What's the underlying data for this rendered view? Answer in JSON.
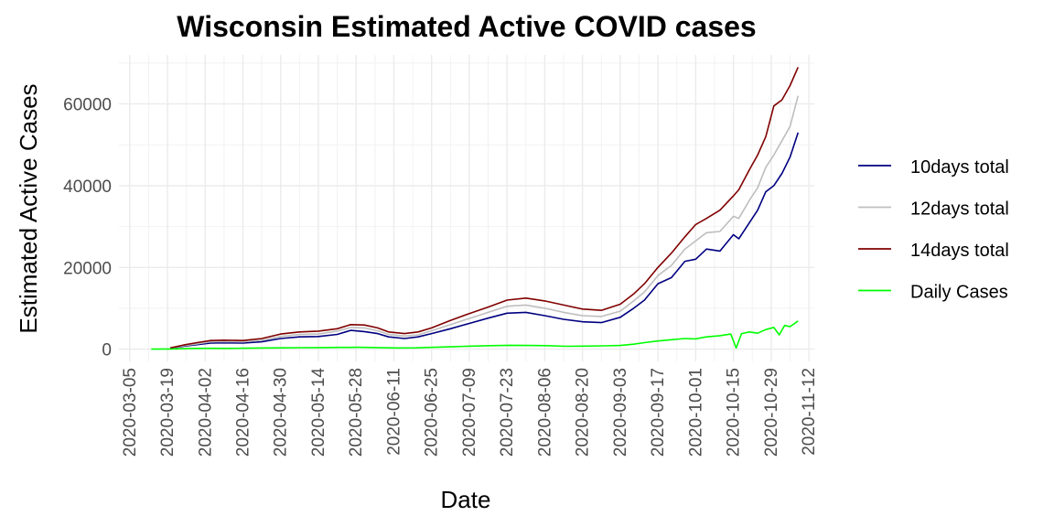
{
  "chart_data": {
    "type": "line",
    "title": "Wisconsin Estimated Active COVID cases",
    "xlabel": "Date",
    "ylabel": "Estimated Active Cases",
    "x_type": "date",
    "xlim": [
      "2020-03-01",
      "2020-11-14"
    ],
    "ylim": [
      -3000,
      72000
    ],
    "x_ticks": [
      "2020-03-05",
      "2020-03-19",
      "2020-04-02",
      "2020-04-16",
      "2020-04-30",
      "2020-05-14",
      "2020-05-28",
      "2020-06-11",
      "2020-06-25",
      "2020-07-09",
      "2020-07-23",
      "2020-08-06",
      "2020-08-20",
      "2020-09-03",
      "2020-09-17",
      "2020-10-01",
      "2020-10-15",
      "2020-10-29",
      "2020-11-12"
    ],
    "y_ticks": [
      0,
      20000,
      40000,
      60000
    ],
    "y_tick_labels": [
      "0",
      "20000",
      "40000",
      "60000"
    ],
    "grid": true,
    "legend_position": "right",
    "series": [
      {
        "name": "10days total",
        "color": "#000080",
        "points": [
          [
            "2020-03-20",
            200
          ],
          [
            "2020-03-25",
            700
          ],
          [
            "2020-03-30",
            1100
          ],
          [
            "2020-04-04",
            1500
          ],
          [
            "2020-04-09",
            1550
          ],
          [
            "2020-04-16",
            1500
          ],
          [
            "2020-04-23",
            1800
          ],
          [
            "2020-04-30",
            2600
          ],
          [
            "2020-05-07",
            3000
          ],
          [
            "2020-05-14",
            3100
          ],
          [
            "2020-05-21",
            3600
          ],
          [
            "2020-05-26",
            4600
          ],
          [
            "2020-05-31",
            4300
          ],
          [
            "2020-06-05",
            3800
          ],
          [
            "2020-06-09",
            3000
          ],
          [
            "2020-06-15",
            2600
          ],
          [
            "2020-06-20",
            3000
          ],
          [
            "2020-06-25",
            3800
          ],
          [
            "2020-07-02",
            5000
          ],
          [
            "2020-07-09",
            6300
          ],
          [
            "2020-07-16",
            7600
          ],
          [
            "2020-07-23",
            8800
          ],
          [
            "2020-07-30",
            9000
          ],
          [
            "2020-08-06",
            8200
          ],
          [
            "2020-08-13",
            7300
          ],
          [
            "2020-08-20",
            6700
          ],
          [
            "2020-08-27",
            6500
          ],
          [
            "2020-09-03",
            7800
          ],
          [
            "2020-09-08",
            10000
          ],
          [
            "2020-09-12",
            12000
          ],
          [
            "2020-09-17",
            16000
          ],
          [
            "2020-09-22",
            17500
          ],
          [
            "2020-09-27",
            21500
          ],
          [
            "2020-10-01",
            22000
          ],
          [
            "2020-10-05",
            24500
          ],
          [
            "2020-10-10",
            24000
          ],
          [
            "2020-10-15",
            28000
          ],
          [
            "2020-10-17",
            27000
          ],
          [
            "2020-10-21",
            31000
          ],
          [
            "2020-10-24",
            34000
          ],
          [
            "2020-10-27",
            38500
          ],
          [
            "2020-10-30",
            40000
          ],
          [
            "2020-11-02",
            43000
          ],
          [
            "2020-11-05",
            47000
          ],
          [
            "2020-11-08",
            53000
          ]
        ]
      },
      {
        "name": "12days total",
        "color": "#bebebe",
        "points": [
          [
            "2020-03-20",
            250
          ],
          [
            "2020-03-25",
            850
          ],
          [
            "2020-03-30",
            1300
          ],
          [
            "2020-04-04",
            1800
          ],
          [
            "2020-04-09",
            1850
          ],
          [
            "2020-04-16",
            1800
          ],
          [
            "2020-04-23",
            2200
          ],
          [
            "2020-04-30",
            3100
          ],
          [
            "2020-05-07",
            3600
          ],
          [
            "2020-05-14",
            3700
          ],
          [
            "2020-05-21",
            4400
          ],
          [
            "2020-05-26",
            5300
          ],
          [
            "2020-05-31",
            5200
          ],
          [
            "2020-06-05",
            4500
          ],
          [
            "2020-06-09",
            3600
          ],
          [
            "2020-06-15",
            3200
          ],
          [
            "2020-06-20",
            3500
          ],
          [
            "2020-06-25",
            4500
          ],
          [
            "2020-07-02",
            6000
          ],
          [
            "2020-07-09",
            7500
          ],
          [
            "2020-07-16",
            9000
          ],
          [
            "2020-07-23",
            10500
          ],
          [
            "2020-07-30",
            10800
          ],
          [
            "2020-08-06",
            10000
          ],
          [
            "2020-08-13",
            9000
          ],
          [
            "2020-08-20",
            8200
          ],
          [
            "2020-08-27",
            8000
          ],
          [
            "2020-09-03",
            9300
          ],
          [
            "2020-09-08",
            11800
          ],
          [
            "2020-09-12",
            14000
          ],
          [
            "2020-09-17",
            18000
          ],
          [
            "2020-09-22",
            20500
          ],
          [
            "2020-09-27",
            24500
          ],
          [
            "2020-10-01",
            26500
          ],
          [
            "2020-10-05",
            28500
          ],
          [
            "2020-10-10",
            28800
          ],
          [
            "2020-10-15",
            32500
          ],
          [
            "2020-10-17",
            32000
          ],
          [
            "2020-10-21",
            36500
          ],
          [
            "2020-10-24",
            39500
          ],
          [
            "2020-10-27",
            44500
          ],
          [
            "2020-10-30",
            47500
          ],
          [
            "2020-11-02",
            51000
          ],
          [
            "2020-11-05",
            54500
          ],
          [
            "2020-11-08",
            62000
          ]
        ]
      },
      {
        "name": "14days total",
        "color": "#800000",
        "points": [
          [
            "2020-03-20",
            300
          ],
          [
            "2020-03-25",
            1000
          ],
          [
            "2020-03-30",
            1600
          ],
          [
            "2020-04-04",
            2100
          ],
          [
            "2020-04-09",
            2200
          ],
          [
            "2020-04-16",
            2100
          ],
          [
            "2020-04-23",
            2600
          ],
          [
            "2020-04-30",
            3700
          ],
          [
            "2020-05-07",
            4200
          ],
          [
            "2020-05-14",
            4400
          ],
          [
            "2020-05-21",
            5000
          ],
          [
            "2020-05-26",
            6000
          ],
          [
            "2020-05-31",
            5900
          ],
          [
            "2020-06-05",
            5200
          ],
          [
            "2020-06-09",
            4200
          ],
          [
            "2020-06-15",
            3800
          ],
          [
            "2020-06-20",
            4200
          ],
          [
            "2020-06-25",
            5200
          ],
          [
            "2020-07-02",
            7000
          ],
          [
            "2020-07-09",
            8700
          ],
          [
            "2020-07-16",
            10300
          ],
          [
            "2020-07-23",
            12000
          ],
          [
            "2020-07-30",
            12500
          ],
          [
            "2020-08-06",
            11800
          ],
          [
            "2020-08-13",
            10800
          ],
          [
            "2020-08-20",
            9800
          ],
          [
            "2020-08-27",
            9500
          ],
          [
            "2020-09-03",
            11000
          ],
          [
            "2020-09-08",
            13500
          ],
          [
            "2020-09-12",
            16000
          ],
          [
            "2020-09-17",
            20000
          ],
          [
            "2020-09-22",
            23500
          ],
          [
            "2020-09-27",
            27500
          ],
          [
            "2020-10-01",
            30500
          ],
          [
            "2020-10-05",
            32000
          ],
          [
            "2020-10-10",
            34000
          ],
          [
            "2020-10-15",
            37500
          ],
          [
            "2020-10-17",
            39000
          ],
          [
            "2020-10-21",
            44000
          ],
          [
            "2020-10-24",
            47500
          ],
          [
            "2020-10-27",
            52000
          ],
          [
            "2020-10-30",
            59500
          ],
          [
            "2020-11-02",
            61000
          ],
          [
            "2020-11-05",
            64500
          ],
          [
            "2020-11-08",
            69000
          ]
        ]
      },
      {
        "name": "Daily Cases",
        "color": "#00ff00",
        "points": [
          [
            "2020-03-13",
            0
          ],
          [
            "2020-03-20",
            50
          ],
          [
            "2020-03-27",
            150
          ],
          [
            "2020-04-03",
            200
          ],
          [
            "2020-04-10",
            180
          ],
          [
            "2020-04-17",
            220
          ],
          [
            "2020-04-24",
            280
          ],
          [
            "2020-05-01",
            320
          ],
          [
            "2020-05-08",
            350
          ],
          [
            "2020-05-15",
            380
          ],
          [
            "2020-05-22",
            420
          ],
          [
            "2020-05-29",
            450
          ],
          [
            "2020-06-05",
            380
          ],
          [
            "2020-06-12",
            300
          ],
          [
            "2020-06-19",
            320
          ],
          [
            "2020-06-26",
            450
          ],
          [
            "2020-07-03",
            600
          ],
          [
            "2020-07-10",
            750
          ],
          [
            "2020-07-17",
            850
          ],
          [
            "2020-07-24",
            950
          ],
          [
            "2020-07-31",
            900
          ],
          [
            "2020-08-07",
            850
          ],
          [
            "2020-08-14",
            700
          ],
          [
            "2020-08-21",
            750
          ],
          [
            "2020-08-28",
            800
          ],
          [
            "2020-09-03",
            900
          ],
          [
            "2020-09-08",
            1200
          ],
          [
            "2020-09-12",
            1600
          ],
          [
            "2020-09-17",
            2000
          ],
          [
            "2020-09-22",
            2300
          ],
          [
            "2020-09-27",
            2600
          ],
          [
            "2020-10-01",
            2500
          ],
          [
            "2020-10-05",
            3000
          ],
          [
            "2020-10-10",
            3300
          ],
          [
            "2020-10-14",
            3700
          ],
          [
            "2020-10-16",
            300
          ],
          [
            "2020-10-18",
            3800
          ],
          [
            "2020-10-21",
            4200
          ],
          [
            "2020-10-24",
            3900
          ],
          [
            "2020-10-27",
            4800
          ],
          [
            "2020-10-30",
            5300
          ],
          [
            "2020-11-01",
            3500
          ],
          [
            "2020-11-03",
            5800
          ],
          [
            "2020-11-05",
            5500
          ],
          [
            "2020-11-08",
            6900
          ]
        ]
      }
    ]
  }
}
